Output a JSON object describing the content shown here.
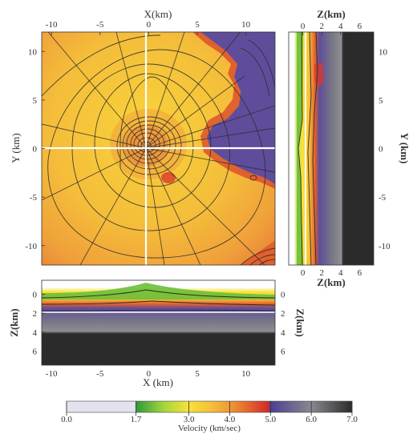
{
  "chart_data": {
    "type": "heatmap",
    "title": "",
    "colors": {
      "yellow": "#f8d33a",
      "orange": "#f0a03a",
      "deep_orange": "#e3602c",
      "red": "#d83a2a",
      "purple": "#5f4d9b",
      "gray": "#7a7a80",
      "dark": "#2b2b2b",
      "green": "#6bbf3a",
      "light": "#e4e2ee"
    },
    "map_view": {
      "xlabel": "X(km)",
      "xlabel_bottom": "X (km)",
      "ylabel": "Y (km)",
      "xlim": [
        -11,
        13
      ],
      "ylim": [
        -12,
        12
      ],
      "xticks": [
        -10,
        -5,
        0,
        5,
        10
      ],
      "yticks": [
        10,
        5,
        0,
        -5,
        -10
      ],
      "crosshair": {
        "x": 0,
        "y": 0
      }
    },
    "side_view": {
      "xlabel": "Z(km)",
      "ylabel": "Y (km)",
      "xlim": [
        -1.5,
        7.5
      ],
      "xticks": [
        0,
        2,
        4,
        6
      ],
      "yticks": [
        10,
        5,
        0,
        -5,
        -10
      ]
    },
    "bottom_view": {
      "ylabel": "Z(km)",
      "xlabel": "X (km)",
      "ylim": [
        -1.5,
        7.5
      ],
      "yticks": [
        0,
        2,
        4,
        6
      ],
      "xticks": [
        -10,
        -5,
        0,
        5,
        10
      ]
    },
    "colorbar": {
      "label": "Velocity (km/sec)",
      "tick_values": [
        0.0,
        1.7,
        3.0,
        4.0,
        5.0,
        6.0,
        7.0
      ],
      "tick_labels": [
        "0.0",
        "1.7",
        "3.0",
        "4.0",
        "5.0",
        "6.0",
        "7.0"
      ],
      "stops": [
        {
          "v": 0.0,
          "color": "#e4e2ee"
        },
        {
          "v": 1.69,
          "color": "#e4e2ee"
        },
        {
          "v": 1.7,
          "color": "#2f9a3a"
        },
        {
          "v": 2.4,
          "color": "#a6d73c"
        },
        {
          "v": 3.0,
          "color": "#f8e23a"
        },
        {
          "v": 3.5,
          "color": "#f6c23a"
        },
        {
          "v": 4.0,
          "color": "#ef9a35"
        },
        {
          "v": 4.5,
          "color": "#e3602c"
        },
        {
          "v": 4.95,
          "color": "#d22a2a"
        },
        {
          "v": 5.0,
          "color": "#4b3f93"
        },
        {
          "v": 6.0,
          "color": "#8a8890"
        },
        {
          "v": 7.0,
          "color": "#2b2b2b"
        }
      ]
    }
  }
}
